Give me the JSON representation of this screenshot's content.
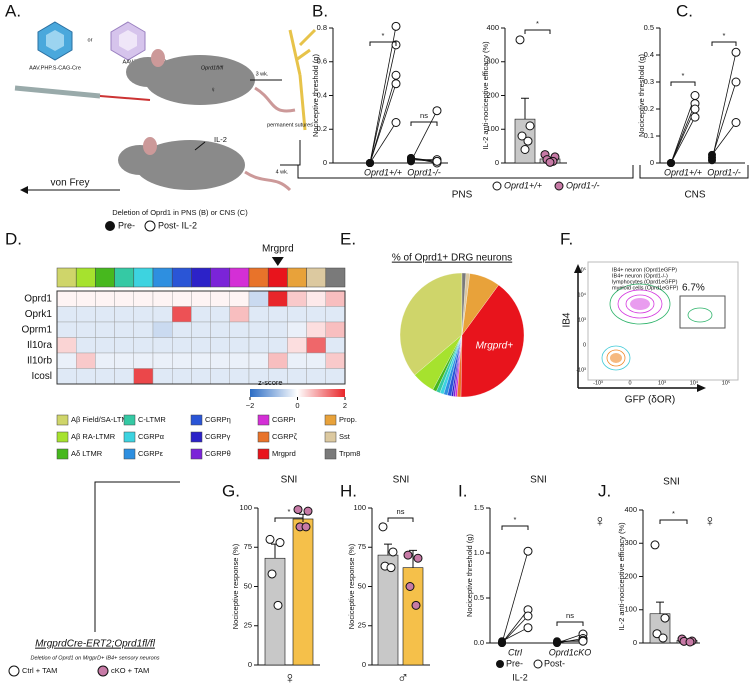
{
  "panel_letters": [
    "A.",
    "B.",
    "C.",
    "D.",
    "E.",
    "F.",
    "G.",
    "H.",
    "I.",
    "J."
  ],
  "schematic_a": {
    "aav_s": "AAV.PHP.S-CAG-Cre",
    "or": "or",
    "aav_eb": "AAV.PHP.eB-CAG-Cre",
    "genotype": "Oprd1fl/fl",
    "weeks_3": "3 wk.",
    "sutures": "permanent sutures",
    "weeks_4": "4 wk.",
    "il2": "IL-2",
    "von_frey": "von Frey",
    "deletion": "Deletion of Oprd1 in PNS (B) or CNS (C)",
    "pre": "Pre-",
    "post": "Post- IL-2"
  },
  "sections": {
    "pns": "PNS",
    "cns": "CNS"
  },
  "schematic_g": {
    "genotype": "MrgprdCre-ERT2;Oprd1fl/fl",
    "deletion": "Deletion of Oprd1 on MrgprD+ IB4+ sensory neurons",
    "ctrl": "Ctrl + TAM",
    "cko": "cKO + TAM"
  },
  "flow_f": {
    "y_label": "IB4",
    "x_label": "GFP (δOR)",
    "gate": "6.7%",
    "legend": [
      "IB4+ neuron (Oprd1eGFP)",
      "IB4+ neuron (Oprd1-/-)",
      "lymphocytes (Oprd1eGFP)",
      "myeloid cells (Oprd1eGFP)"
    ],
    "yticks": [
      "10⁵",
      "10⁴",
      "10³",
      "0",
      "-10³"
    ],
    "xticks": [
      "-10³",
      "0",
      "10³",
      "10⁴",
      "10⁵"
    ]
  },
  "chart_data": [
    {
      "type": "paired",
      "ylabel": "Nociceptive threshold (g)",
      "ylim": [
        0,
        0.8
      ],
      "yticks": [
        0,
        0.2,
        0.4,
        0.6,
        0.8
      ],
      "groups": [
        {
          "name": "Oprd1+/+",
          "pre": [
            0,
            0,
            0,
            0,
            0
          ],
          "post": [
            0.81,
            0.7,
            0.52,
            0.47,
            0.24
          ]
        },
        {
          "name": "Oprd1-/-",
          "pre": [
            0.01,
            0.02,
            0.02,
            0.03,
            0.03
          ],
          "post": [
            0.31,
            0.02,
            0.01,
            0,
            0.01
          ]
        }
      ],
      "annotations": [
        "*",
        "ns"
      ]
    },
    {
      "type": "bar_dot",
      "ylabel": "IL-2 anti-nociceptive efficacy (%)",
      "ylim": [
        0,
        400
      ],
      "yticks": [
        0,
        100,
        200,
        300,
        400
      ],
      "groups": [
        {
          "name": "Oprd1+/+",
          "mean": 130,
          "error": 62,
          "points": [
            365,
            110,
            80,
            65,
            40
          ],
          "bar_color": "#c8c8c8",
          "point_color": "#ffffff"
        },
        {
          "name": "Oprd1-/-",
          "mean": 12,
          "error": 5,
          "points": [
            25,
            18,
            10,
            5,
            2
          ],
          "bar_color": "#c8c8c8",
          "point_color": "#c77aa6"
        }
      ],
      "annotation": "*"
    },
    {
      "type": "paired",
      "ylabel": "Nociceptive threshold (g)",
      "ylim": [
        0,
        0.5
      ],
      "yticks": [
        0,
        0.1,
        0.2,
        0.3,
        0.4,
        0.5
      ],
      "groups": [
        {
          "name": "Oprd1+/+",
          "pre": [
            0,
            0,
            0,
            0
          ],
          "post": [
            0.25,
            0.22,
            0.2,
            0.17
          ]
        },
        {
          "name": "Oprd1-/-",
          "pre": [
            0.01,
            0.02,
            0.03
          ],
          "post": [
            0.41,
            0.3,
            0.15
          ]
        }
      ],
      "annotations": [
        "*",
        "*"
      ]
    },
    {
      "type": "heatmap",
      "rows": [
        "Oprd1",
        "Oprk1",
        "Oprm1",
        "Il10ra",
        "Il10rb",
        "Icosl"
      ],
      "marker": "Mrgprd",
      "legend": [
        {
          "name": "Aβ Field/SA-LTMR",
          "color": "#cfd56a"
        },
        {
          "name": "Aβ RA-LTMR",
          "color": "#a6e22e"
        },
        {
          "name": "Aδ LTMR",
          "color": "#47b81e"
        },
        {
          "name": "C-LTMR",
          "color": "#35c9a4"
        },
        {
          "name": "CGRPα",
          "color": "#3dd3e0"
        },
        {
          "name": "CGRPε",
          "color": "#2e8fe0"
        },
        {
          "name": "CGRPη",
          "color": "#2a55d6"
        },
        {
          "name": "CGRPγ",
          "color": "#2c22c8"
        },
        {
          "name": "CGRPθ",
          "color": "#7b24d8"
        },
        {
          "name": "CGRPι",
          "color": "#d42fd6"
        },
        {
          "name": "CGRPζ",
          "color": "#e8732a"
        },
        {
          "name": "Mrgprd",
          "color": "#e8141c"
        },
        {
          "name": "Prop.",
          "color": "#e8a23a"
        },
        {
          "name": "Sst",
          "color": "#dcc9a0"
        },
        {
          "name": "Trpm8",
          "color": "#7a7a7a"
        }
      ],
      "values": [
        [
          0.1,
          0.1,
          0.1,
          0.1,
          0.1,
          0.1,
          0.1,
          0.1,
          0.1,
          0.1,
          -0.5,
          2,
          0.5,
          0.2,
          0.6
        ],
        [
          -0.3,
          -0.3,
          -0.3,
          -0.3,
          -0.3,
          -0.3,
          1.6,
          -0.3,
          -0.3,
          0.6,
          -0.3,
          -0.3,
          -0.3,
          -0.3,
          -0.3
        ],
        [
          -0.3,
          -0.3,
          -0.3,
          -0.3,
          -0.3,
          -0.5,
          -0.3,
          -0.3,
          -0.3,
          -0.3,
          -0.3,
          -0.3,
          -0.2,
          0.3,
          0.6
        ],
        [
          0.4,
          -0.3,
          -0.3,
          -0.3,
          -0.3,
          -0.3,
          -0.3,
          -0.3,
          -0.3,
          -0.3,
          -0.3,
          -0.3,
          0.3,
          1.4,
          -0.3
        ],
        [
          -0.2,
          0.5,
          -0.2,
          -0.2,
          -0.2,
          -0.2,
          -0.2,
          -0.2,
          -0.2,
          -0.2,
          -0.2,
          0.6,
          -0.2,
          -0.2,
          0.5
        ],
        [
          -0.3,
          -0.3,
          -0.3,
          -0.3,
          1.7,
          -0.3,
          -0.3,
          -0.3,
          -0.3,
          -0.3,
          -0.3,
          -0.3,
          -0.3,
          -0.3,
          -0.3
        ]
      ],
      "colorbar_label": "z-score",
      "colorbar_lim": [
        -2,
        2
      ],
      "colorbar_ticks": [
        {
          "value": -2,
          "label": "−2"
        },
        0,
        2
      ],
      "low_color": "#2b6cc4",
      "high_color": "#e8262a"
    },
    {
      "type": "pie",
      "title": "% of Oprd1+ DRG neurons",
      "slices": [
        {
          "color": "#cfd56a",
          "value": 36
        },
        {
          "color": "#a6e22e",
          "value": 6
        },
        {
          "color": "#47b81e",
          "value": 1
        },
        {
          "color": "#35c9a4",
          "value": 1
        },
        {
          "color": "#3dd3e0",
          "value": 1
        },
        {
          "color": "#2e8fe0",
          "value": 1
        },
        {
          "color": "#2a55d6",
          "value": 1
        },
        {
          "color": "#2c22c8",
          "value": 0.5
        },
        {
          "color": "#7b24d8",
          "value": 0.5
        },
        {
          "color": "#d42fd6",
          "value": 0.5
        },
        {
          "color": "#e8732a",
          "value": 1
        },
        {
          "color": "#e8141c",
          "value": 40,
          "label": "Mrgprd+"
        },
        {
          "color": "#e8a23a",
          "value": 8
        },
        {
          "color": "#dcc9a0",
          "value": 1
        },
        {
          "color": "#7a7a7a",
          "value": 1
        }
      ]
    },
    {
      "type": "bar_dot",
      "title": "SNI",
      "ylabel": "Nociceptive response (%)",
      "ylim": [
        0,
        100
      ],
      "yticks": [
        0,
        25,
        50,
        75,
        100
      ],
      "groups": [
        {
          "mean": 68,
          "error": 9,
          "points": [
            80,
            78,
            58,
            38
          ],
          "bar_color": "#c8c8c8",
          "point_color": "#ffffff"
        },
        {
          "mean": 93,
          "error": 3,
          "points": [
            99,
            98,
            88,
            88
          ],
          "bar_color": "#f5c04a",
          "point_color": "#c77aa6"
        }
      ],
      "annotation": "*",
      "symbol": "♀"
    },
    {
      "type": "bar_dot",
      "title": "SNI",
      "ylabel": "Nociceptive response (%)",
      "ylim": [
        0,
        100
      ],
      "yticks": [
        0,
        25,
        50,
        75,
        100
      ],
      "groups": [
        {
          "mean": 70,
          "error": 7,
          "points": [
            88,
            72,
            63,
            62
          ],
          "bar_color": "#c8c8c8",
          "point_color": "#ffffff"
        },
        {
          "mean": 62,
          "error": 11,
          "points": [
            70,
            68,
            50,
            38
          ],
          "bar_color": "#f5c04a",
          "point_color": "#c77aa6"
        }
      ],
      "annotation": "ns",
      "symbol": "♂"
    },
    {
      "type": "paired",
      "title": "SNI",
      "ylabel": "Nociceptive threshold (g)",
      "ylim": [
        0,
        1.5
      ],
      "yticks": [
        {
          "value": 0,
          "label": "0.0"
        },
        0.5,
        {
          "value": 1,
          "label": "1.0"
        },
        1.5
      ],
      "groups": [
        {
          "name": "Ctrl",
          "pre": [
            0,
            0,
            0,
            0.02
          ],
          "post": [
            1.02,
            0.37,
            0.3,
            0.17
          ]
        },
        {
          "name": "Oprd1cKO",
          "pre": [
            0,
            0,
            0.01,
            0.02
          ],
          "post": [
            0.1,
            0.05,
            0.03,
            0.02
          ]
        }
      ],
      "annotations": [
        "*",
        "ns"
      ],
      "symbol": "♀",
      "legend": {
        "pre": "Pre-",
        "post": "Post-",
        "note": "IL-2"
      }
    },
    {
      "type": "bar_dot",
      "title": "SNI",
      "ylabel": "IL-2 anti-nociceptive efficacy (%)",
      "ylim": [
        0,
        400
      ],
      "yticks": [
        0,
        100,
        200,
        300,
        400
      ],
      "groups": [
        {
          "mean": 88,
          "error": 35,
          "points": [
            295,
            75,
            28,
            15
          ],
          "bar_color": "#c8c8c8",
          "point_color": "#ffffff"
        },
        {
          "mean": 8,
          "error": 4,
          "points": [
            12,
            6,
            5,
            3
          ],
          "bar_color": "#c8c8c8",
          "point_color": "#c77aa6"
        }
      ],
      "annotation": "*",
      "symbol": "♀"
    }
  ]
}
